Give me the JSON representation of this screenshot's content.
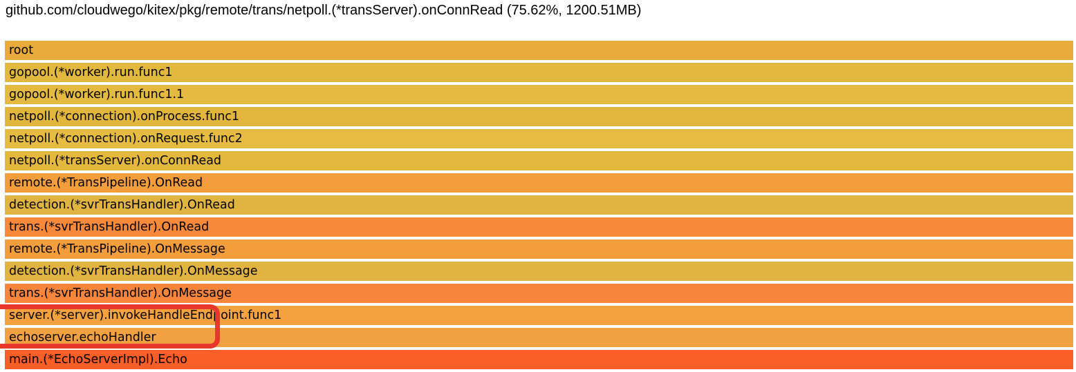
{
  "header": {
    "title": "github.com/cloudwego/kitex/pkg/remote/trans/netpoll.(*transServer).onConnRead (75.62%, 1200.51MB)",
    "selected_frame": "netpoll.(*transServer).onConnRead",
    "selected_percent": "75.62%",
    "selected_value": "1200.51MB"
  },
  "chart_data": {
    "type": "flame",
    "title": "github.com/cloudwego/kitex/pkg/remote/trans/netpoll.(*transServer).onConnRead (75.62%, 1200.51MB)",
    "orientation": "top-down",
    "frame_width_percent": 100,
    "frames": [
      {
        "label": "root",
        "color": "#e9ab3b"
      },
      {
        "label": "gopool.(*worker).run.func1",
        "color": "#e3b83e"
      },
      {
        "label": "gopool.(*worker).run.func1.1",
        "color": "#e5ba40"
      },
      {
        "label": "netpoll.(*connection).onProcess.func1",
        "color": "#e2b63d"
      },
      {
        "label": "netpoll.(*connection).onRequest.func2",
        "color": "#e5bb41"
      },
      {
        "label": "netpoll.(*transServer).onConnRead",
        "color": "#e3b83d"
      },
      {
        "label": "remote.(*TransPipeline).OnRead",
        "color": "#f39d3d"
      },
      {
        "label": "detection.(*svrTransHandler).OnRead",
        "color": "#e1b441"
      },
      {
        "label": "trans.(*svrTransHandler).OnRead",
        "color": "#f8893b"
      },
      {
        "label": "remote.(*TransPipeline).OnMessage",
        "color": "#f39d3d"
      },
      {
        "label": "detection.(*svrTransHandler).OnMessage",
        "color": "#e1b441"
      },
      {
        "label": "trans.(*svrTransHandler).OnMessage",
        "color": "#f8853c"
      },
      {
        "label": "server.(*server).invokeHandleEndpoint.func1",
        "color": "#f4a240"
      },
      {
        "label": "echoserver.echoHandler",
        "color": "#f2a142"
      },
      {
        "label": "main.(*EchoServerImpl).Echo",
        "color": "#fb5e26"
      }
    ]
  },
  "annotation": {
    "color": "#e8372c",
    "highlighted_frames": [
      "server.(*server).invokeHandleEndpoint.func1",
      "echoserver.echoHandler"
    ]
  }
}
